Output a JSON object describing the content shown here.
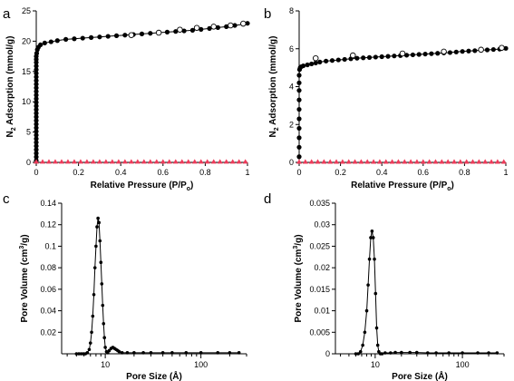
{
  "chart_data": [
    {
      "panel": "a",
      "type": "scatter",
      "xlabel_main": "Relative Pressure (P/P",
      "xlabel_sub": "o",
      "xlabel_tail": ")",
      "ylabel_pre": "N",
      "ylabel_sub": "2",
      "ylabel_post": " Adsorption (mmol/g)",
      "xlim": [
        0,
        1
      ],
      "ylim": [
        0,
        25
      ],
      "xticks": [
        0,
        0.2,
        0.4,
        0.6,
        0.8,
        1
      ],
      "xtick_labels": [
        "0",
        "0.2",
        "0.4",
        "0.6",
        "0.8",
        "1"
      ],
      "yticks": [
        0,
        5,
        10,
        15,
        20,
        25
      ],
      "ytick_labels": [
        "0",
        "5",
        "10",
        "15",
        "20",
        "25"
      ],
      "grid": false,
      "series": [
        {
          "style": "filled-circle-line",
          "color": "#000000",
          "x": [
            0,
            0,
            0,
            0,
            0,
            0,
            0,
            0,
            0,
            0,
            0,
            0,
            0,
            0,
            0,
            0,
            0,
            0,
            0,
            0,
            0,
            0,
            0,
            0,
            0,
            0,
            0,
            0,
            0,
            0,
            0.002,
            0.005,
            0.01,
            0.02,
            0.04,
            0.07,
            0.1,
            0.14,
            0.18,
            0.22,
            0.26,
            0.3,
            0.34,
            0.38,
            0.42,
            0.46,
            0.5,
            0.54,
            0.58,
            0.62,
            0.66,
            0.7,
            0.74,
            0.78,
            0.82,
            0.86,
            0.9,
            0.94,
            0.98,
            1.0
          ],
          "y": [
            0.3,
            0.9,
            1.5,
            2.1,
            2.7,
            3.3,
            3.9,
            4.5,
            5.1,
            5.7,
            6.3,
            6.9,
            7.5,
            8.1,
            8.7,
            9.3,
            9.9,
            10.5,
            11.1,
            11.7,
            12.3,
            12.9,
            13.5,
            14.1,
            14.7,
            15.3,
            15.9,
            16.5,
            17.0,
            17.5,
            18.0,
            18.6,
            19.0,
            19.4,
            19.7,
            19.9,
            20.1,
            20.3,
            20.4,
            20.5,
            20.6,
            20.7,
            20.8,
            20.9,
            21.0,
            21.1,
            21.2,
            21.3,
            21.4,
            21.5,
            21.6,
            21.7,
            21.8,
            21.95,
            22.1,
            22.25,
            22.4,
            22.6,
            22.8,
            22.95
          ]
        },
        {
          "style": "open-circle",
          "color": "#000000",
          "x": [
            0.68,
            0.76,
            0.84,
            0.92,
            0.98,
            0.45,
            0.58
          ],
          "y": [
            21.9,
            22.2,
            22.4,
            22.6,
            22.9,
            21.0,
            21.4
          ]
        },
        {
          "style": "triangle",
          "color": "#ee3b5a",
          "x": [
            0,
            0.03,
            0.06,
            0.09,
            0.12,
            0.15,
            0.18,
            0.21,
            0.24,
            0.27,
            0.3,
            0.33,
            0.36,
            0.39,
            0.42,
            0.45,
            0.48,
            0.51,
            0.54,
            0.57,
            0.6,
            0.63,
            0.66,
            0.69,
            0.72,
            0.75,
            0.78,
            0.81,
            0.84,
            0.87,
            0.9,
            0.93,
            0.96,
            0.99
          ],
          "y": [
            0.1,
            0.1,
            0.1,
            0.1,
            0.1,
            0.1,
            0.1,
            0.1,
            0.1,
            0.1,
            0.1,
            0.1,
            0.1,
            0.1,
            0.1,
            0.1,
            0.1,
            0.1,
            0.1,
            0.1,
            0.1,
            0.1,
            0.1,
            0.1,
            0.1,
            0.1,
            0.1,
            0.1,
            0.1,
            0.1,
            0.1,
            0.1,
            0.1,
            0.1
          ]
        }
      ]
    },
    {
      "panel": "b",
      "type": "scatter",
      "xlabel_main": "Relative Pressure (P/P",
      "xlabel_sub": "o",
      "xlabel_tail": ")",
      "ylabel_pre": "N",
      "ylabel_sub": "2",
      "ylabel_post": " Adsorption (mmol/g)",
      "xlim": [
        0,
        1
      ],
      "ylim": [
        0,
        8
      ],
      "xticks": [
        0,
        0.2,
        0.4,
        0.6,
        0.8,
        1
      ],
      "xtick_labels": [
        "0",
        "0.2",
        "0.4",
        "0.6",
        "0.8",
        "1"
      ],
      "yticks": [
        0,
        2,
        4,
        6,
        8
      ],
      "ytick_labels": [
        "0",
        "2",
        "4",
        "6",
        "8"
      ],
      "grid": false,
      "series": [
        {
          "style": "filled-circle-line",
          "color": "#000000",
          "x": [
            0,
            0,
            0,
            0,
            0,
            0,
            0,
            0,
            0,
            0,
            0.002,
            0.005,
            0.01,
            0.02,
            0.04,
            0.06,
            0.08,
            0.1,
            0.13,
            0.16,
            0.19,
            0.22,
            0.25,
            0.28,
            0.31,
            0.34,
            0.37,
            0.4,
            0.43,
            0.46,
            0.49,
            0.52,
            0.55,
            0.58,
            0.61,
            0.64,
            0.67,
            0.7,
            0.73,
            0.76,
            0.79,
            0.82,
            0.85,
            0.88,
            0.91,
            0.94,
            0.97,
            1.0
          ],
          "y": [
            0.3,
            0.8,
            1.3,
            1.8,
            2.3,
            2.8,
            3.3,
            3.8,
            4.2,
            4.6,
            4.9,
            5.0,
            5.05,
            5.1,
            5.15,
            5.2,
            5.25,
            5.3,
            5.35,
            5.38,
            5.41,
            5.44,
            5.47,
            5.5,
            5.52,
            5.54,
            5.56,
            5.58,
            5.6,
            5.62,
            5.64,
            5.66,
            5.68,
            5.7,
            5.72,
            5.74,
            5.76,
            5.78,
            5.8,
            5.83,
            5.86,
            5.88,
            5.9,
            5.92,
            5.94,
            5.96,
            5.98,
            6.02
          ]
        },
        {
          "style": "open-circle",
          "color": "#000000",
          "x": [
            0.08,
            0.26,
            0.5,
            0.7,
            0.88,
            0.98
          ],
          "y": [
            5.5,
            5.65,
            5.75,
            5.85,
            5.95,
            6.05
          ]
        },
        {
          "style": "triangle",
          "color": "#ee3b5a",
          "x": [
            0,
            0.03,
            0.06,
            0.09,
            0.12,
            0.15,
            0.18,
            0.21,
            0.24,
            0.27,
            0.3,
            0.33,
            0.36,
            0.39,
            0.42,
            0.45,
            0.48,
            0.51,
            0.54,
            0.57,
            0.6,
            0.63,
            0.66,
            0.69,
            0.72,
            0.75,
            0.78,
            0.81,
            0.84,
            0.87,
            0.9,
            0.93,
            0.96,
            0.99
          ],
          "y": [
            0.03,
            0.03,
            0.03,
            0.03,
            0.03,
            0.03,
            0.03,
            0.03,
            0.03,
            0.03,
            0.03,
            0.03,
            0.03,
            0.03,
            0.03,
            0.03,
            0.03,
            0.03,
            0.03,
            0.03,
            0.03,
            0.03,
            0.03,
            0.03,
            0.03,
            0.03,
            0.03,
            0.03,
            0.03,
            0.03,
            0.03,
            0.03,
            0.03,
            0.03
          ]
        }
      ]
    },
    {
      "panel": "c",
      "type": "line",
      "xscale": "log",
      "xlabel_main": "Pore Size (Å)",
      "ylabel_pre": "Pore Volume (cm",
      "ylabel_sup": "3",
      "ylabel_post": "/g)",
      "xlim": [
        3.5,
        300
      ],
      "ylim": [
        0,
        0.14
      ],
      "xticks": [
        10,
        100
      ],
      "xtick_labels": [
        "10",
        "100"
      ],
      "yticks": [
        0.02,
        0.04,
        0.06,
        0.08,
        0.1,
        0.12,
        0.14
      ],
      "ytick_labels": [
        "0.02",
        "0.04",
        "0.06",
        "0.08",
        "0.1",
        "0.12",
        "0.14"
      ],
      "grid": false,
      "series": [
        {
          "style": "filled-circle-line",
          "color": "#000000",
          "x": [
            5,
            5.3,
            5.6,
            5.9,
            6.2,
            6.5,
            6.8,
            7.0,
            7.2,
            7.4,
            7.6,
            7.8,
            8.0,
            8.2,
            8.4,
            8.6,
            8.8,
            9.0,
            9.2,
            9.4,
            9.6,
            9.8,
            10.0,
            10.3,
            10.6,
            11.0,
            11.5,
            12.0,
            12.5,
            13.0,
            13.5,
            14.0,
            15,
            17,
            20,
            25,
            30,
            40,
            50,
            70,
            100,
            150,
            200,
            250
          ],
          "y": [
            0,
            0,
            0,
            0,
            0,
            0.001,
            0.004,
            0.01,
            0.02,
            0.035,
            0.055,
            0.08,
            0.1,
            0.118,
            0.126,
            0.122,
            0.105,
            0.085,
            0.065,
            0.045,
            0.028,
            0.015,
            0.006,
            0.002,
            0.001,
            0.003,
            0.005,
            0.006,
            0.005,
            0.004,
            0.003,
            0.002,
            0.001,
            0.001,
            0.001,
            0.001,
            0.001,
            0.001,
            0.001,
            0.001,
            0.001,
            0.001,
            0.001,
            0.001
          ]
        }
      ]
    },
    {
      "panel": "d",
      "type": "line",
      "xscale": "log",
      "xlabel_main": "Pore Size (Å)",
      "ylabel_pre": "Pore Volume (cm",
      "ylabel_sup": "3",
      "ylabel_post": "/g)",
      "xlim": [
        3.5,
        300
      ],
      "ylim": [
        0,
        0.035
      ],
      "xticks": [
        10,
        100
      ],
      "xtick_labels": [
        "10",
        "100"
      ],
      "yticks": [
        0,
        0.005,
        0.01,
        0.015,
        0.02,
        0.025,
        0.03,
        0.035
      ],
      "ytick_labels": [
        "0",
        "0.005",
        "0.01",
        "0.015",
        "0.02",
        "0.025",
        "0.03",
        "0.035"
      ],
      "grid": false,
      "series": [
        {
          "style": "filled-circle-line",
          "color": "#000000",
          "x": [
            6,
            6.4,
            6.8,
            7.2,
            7.6,
            8.0,
            8.3,
            8.6,
            8.9,
            9.2,
            9.5,
            9.8,
            10.1,
            10.4,
            10.7,
            11.0,
            11.5,
            12,
            13,
            15,
            17,
            20,
            25,
            30,
            40,
            50,
            70,
            100,
            150,
            200,
            250
          ],
          "y": [
            0,
            0,
            0.0005,
            0.002,
            0.005,
            0.01,
            0.016,
            0.022,
            0.027,
            0.0285,
            0.027,
            0.022,
            0.014,
            0.006,
            0.002,
            0.0005,
            0,
            0,
            0.0002,
            0.0002,
            0.0003,
            0.0003,
            0.0003,
            0.0003,
            0.0002,
            0.0002,
            0.0002,
            0.0002,
            0.0002,
            0.0002,
            0.0002
          ]
        }
      ]
    }
  ]
}
